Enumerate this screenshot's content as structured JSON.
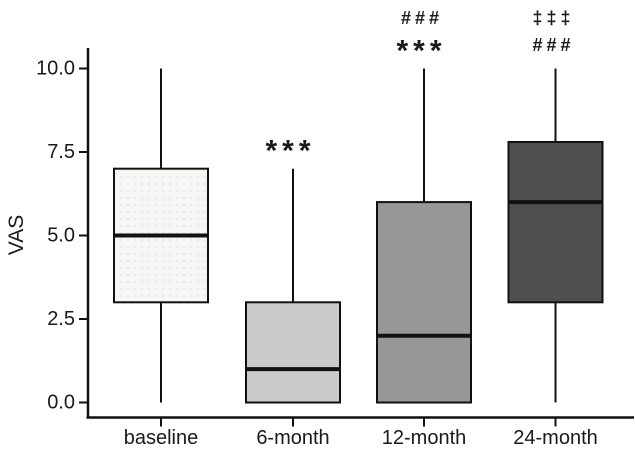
{
  "figure": {
    "background": "#ffffff"
  },
  "chart_data": {
    "type": "boxplot",
    "title": "",
    "xlabel": "",
    "ylabel": "VAS",
    "ylim": [
      0,
      10
    ],
    "grid": false,
    "legend": false,
    "ytick_values": [
      0,
      2.5,
      5,
      7.5,
      10
    ],
    "yticks": [
      "0.0",
      "2.5",
      "5.0",
      "7.5",
      "10.0"
    ],
    "categories": [
      "baseline",
      "6-month",
      "12-month",
      "24-month"
    ],
    "boxes": [
      {
        "category": "baseline",
        "whisker_low": 0,
        "q1": 3,
        "median": 5,
        "q3": 7,
        "whisker_high": 10,
        "fill": "#f6f6f4",
        "texture": "dots",
        "annotations": []
      },
      {
        "category": "6-month",
        "whisker_low": 0,
        "q1": 0,
        "median": 1,
        "q3": 3,
        "whisker_high": 7,
        "fill": "#cbcbc9",
        "texture": "none",
        "annotations": [
          "***"
        ]
      },
      {
        "category": "12-month",
        "whisker_low": 0,
        "q1": 0,
        "median": 2,
        "q3": 6,
        "whisker_high": 10,
        "fill": "#999795",
        "texture": "none",
        "annotations": [
          "###",
          "***"
        ]
      },
      {
        "category": "24-month",
        "whisker_low": 0,
        "q1": 3,
        "median": 6,
        "q3": 7.8,
        "whisker_high": 10,
        "fill": "#4f4f4f",
        "texture": "none",
        "annotations": [
          "‡‡‡",
          "###"
        ]
      }
    ],
    "line_color": "#111111",
    "text_color": "#1a1a1a"
  }
}
